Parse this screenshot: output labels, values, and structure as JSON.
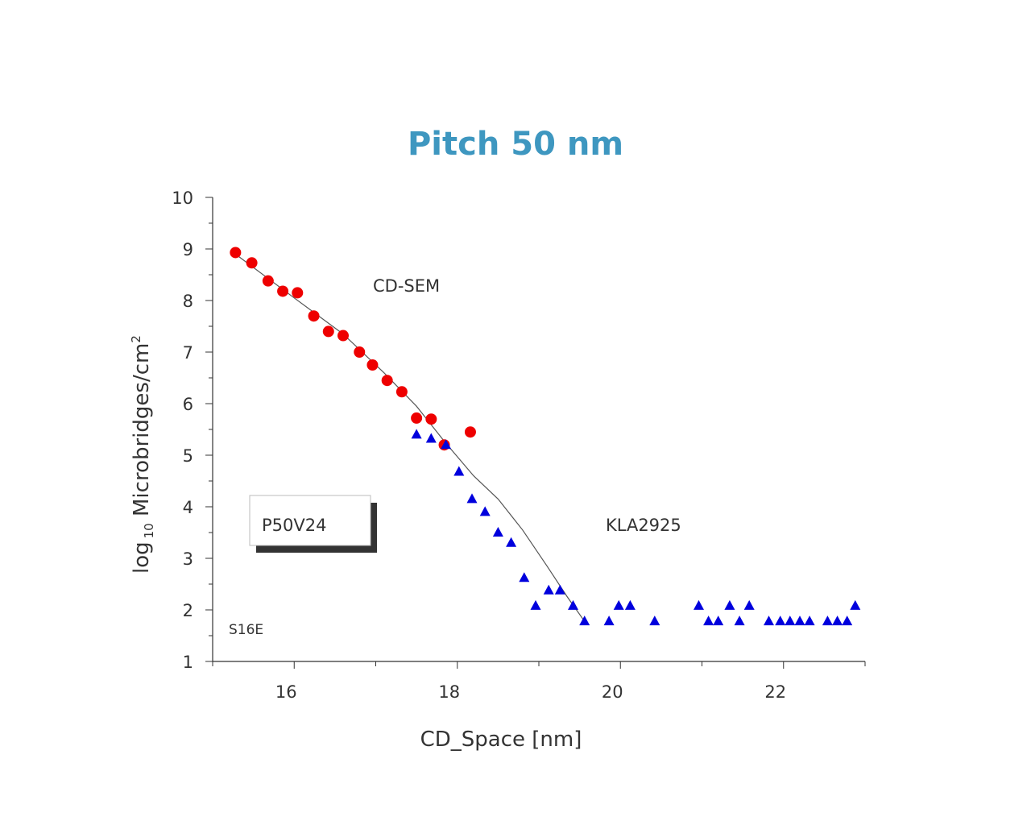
{
  "chart_data": {
    "type": "scatter",
    "title": "Pitch 50 nm",
    "xlabel": "CD_Space  [nm]",
    "ylabel_main": "log",
    "ylabel_sub": "10",
    "ylabel_rest": " Microbridges/cm",
    "ylabel_sup": "2",
    "xlim": [
      15.0,
      23.0
    ],
    "ylim": [
      1,
      10
    ],
    "x_ticks": [
      16,
      18,
      20,
      22
    ],
    "y_ticks": [
      1,
      2,
      3,
      4,
      5,
      6,
      7,
      8,
      9,
      10
    ],
    "grid": false,
    "series": [
      {
        "name": "CD-SEM",
        "marker": "circle",
        "color": "#ee0000",
        "points": [
          [
            15.28,
            8.93
          ],
          [
            15.48,
            8.73
          ],
          [
            15.68,
            8.38
          ],
          [
            15.86,
            8.18
          ],
          [
            16.04,
            8.15
          ],
          [
            16.24,
            7.7
          ],
          [
            16.42,
            7.4
          ],
          [
            16.6,
            7.32
          ],
          [
            16.8,
            7.0
          ],
          [
            16.96,
            6.75
          ],
          [
            17.14,
            6.45
          ],
          [
            17.32,
            6.23
          ],
          [
            17.5,
            5.72
          ],
          [
            17.68,
            5.7
          ],
          [
            17.84,
            5.2
          ],
          [
            18.16,
            5.45
          ]
        ]
      },
      {
        "name": "KLA2925",
        "marker": "triangle",
        "color": "#0000dd",
        "points": [
          [
            17.5,
            5.4
          ],
          [
            17.68,
            5.32
          ],
          [
            17.86,
            5.2
          ],
          [
            18.02,
            4.68
          ],
          [
            18.18,
            4.15
          ],
          [
            18.34,
            3.9
          ],
          [
            18.5,
            3.5
          ],
          [
            18.66,
            3.3
          ],
          [
            18.82,
            2.62
          ],
          [
            18.96,
            2.08
          ],
          [
            19.12,
            2.38
          ],
          [
            19.26,
            2.38
          ],
          [
            19.42,
            2.08
          ],
          [
            19.56,
            1.78
          ],
          [
            19.86,
            1.78
          ],
          [
            19.98,
            2.08
          ],
          [
            20.12,
            2.08
          ],
          [
            20.42,
            1.78
          ],
          [
            20.96,
            2.08
          ],
          [
            21.08,
            1.78
          ],
          [
            21.2,
            1.78
          ],
          [
            21.34,
            2.08
          ],
          [
            21.46,
            1.78
          ],
          [
            21.58,
            2.08
          ],
          [
            21.82,
            1.78
          ],
          [
            21.96,
            1.78
          ],
          [
            22.08,
            1.78
          ],
          [
            22.2,
            1.78
          ],
          [
            22.32,
            1.78
          ],
          [
            22.54,
            1.78
          ],
          [
            22.66,
            1.78
          ],
          [
            22.78,
            1.78
          ],
          [
            22.88,
            2.08
          ]
        ]
      }
    ],
    "fit_line": [
      [
        15.28,
        8.9
      ],
      [
        16.0,
        8.05
      ],
      [
        16.6,
        7.35
      ],
      [
        17.1,
        6.6
      ],
      [
        17.5,
        5.95
      ],
      [
        17.85,
        5.25
      ],
      [
        18.2,
        4.6
      ],
      [
        18.5,
        4.15
      ],
      [
        18.8,
        3.55
      ],
      [
        19.1,
        2.85
      ],
      [
        19.35,
        2.25
      ],
      [
        19.55,
        1.8
      ]
    ],
    "annotations": {
      "cd_sem_label": "CD-SEM",
      "kla_label": "KLA2925",
      "sample_box": "P50V24",
      "corner_label": "S16E"
    }
  }
}
